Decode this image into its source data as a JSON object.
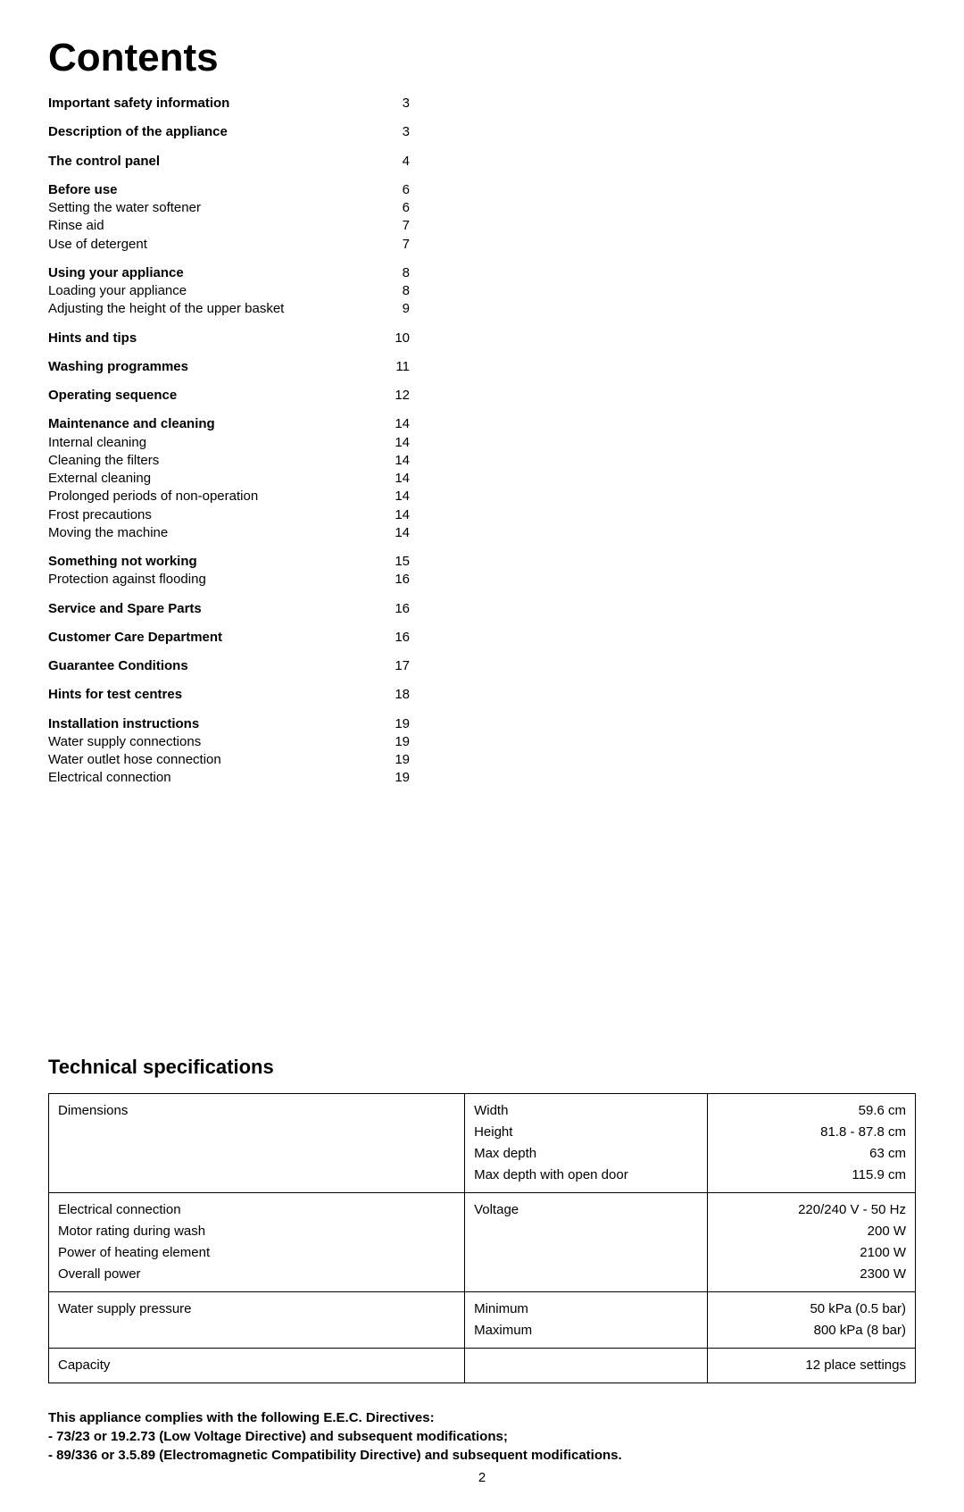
{
  "title": "Contents",
  "toc": [
    {
      "rows": [
        {
          "label": "Important safety information",
          "bold": true,
          "page": "3"
        }
      ]
    },
    {
      "rows": [
        {
          "label": "Description of the appliance",
          "bold": true,
          "page": "3"
        }
      ]
    },
    {
      "rows": [
        {
          "label": "The control panel",
          "bold": true,
          "page": "4"
        }
      ]
    },
    {
      "rows": [
        {
          "label": "Before use",
          "bold": true,
          "page": "6"
        },
        {
          "label": "Setting the water softener",
          "bold": false,
          "page": "6"
        },
        {
          "label": "Rinse aid",
          "bold": false,
          "page": "7"
        },
        {
          "label": "Use of detergent",
          "bold": false,
          "page": "7"
        }
      ]
    },
    {
      "rows": [
        {
          "label": "Using your appliance",
          "bold": true,
          "page": "8"
        },
        {
          "label": "Loading your appliance",
          "bold": false,
          "page": "8"
        },
        {
          "label": "Adjusting the height of the upper basket",
          "bold": false,
          "page": "9"
        }
      ]
    },
    {
      "rows": [
        {
          "label": "Hints and tips",
          "bold": true,
          "page": "10"
        }
      ]
    },
    {
      "rows": [
        {
          "label": "Washing programmes",
          "bold": true,
          "page": "11"
        }
      ]
    },
    {
      "rows": [
        {
          "label": "Operating sequence",
          "bold": true,
          "page": "12"
        }
      ]
    },
    {
      "rows": [
        {
          "label": "Maintenance and cleaning",
          "bold": true,
          "page": "14"
        },
        {
          "label": "Internal cleaning",
          "bold": false,
          "page": "14"
        },
        {
          "label": "Cleaning the filters",
          "bold": false,
          "page": "14"
        },
        {
          "label": "External cleaning",
          "bold": false,
          "page": "14"
        },
        {
          "label": "Prolonged periods of non-operation",
          "bold": false,
          "page": "14"
        },
        {
          "label": "Frost precautions",
          "bold": false,
          "page": "14"
        },
        {
          "label": "Moving the machine",
          "bold": false,
          "page": "14"
        }
      ]
    },
    {
      "rows": [
        {
          "label": "Something not working",
          "bold": true,
          "page": "15"
        },
        {
          "label": "Protection against flooding",
          "bold": false,
          "page": "16"
        }
      ]
    },
    {
      "rows": [
        {
          "label": "Service and Spare Parts",
          "bold": true,
          "page": "16"
        }
      ]
    },
    {
      "rows": [
        {
          "label": "Customer Care Department",
          "bold": true,
          "page": "16"
        }
      ]
    },
    {
      "rows": [
        {
          "label": "Guarantee Conditions",
          "bold": true,
          "page": "17"
        }
      ]
    },
    {
      "rows": [
        {
          "label": "Hints for test centres",
          "bold": true,
          "page": "18"
        }
      ]
    },
    {
      "rows": [
        {
          "label": "Installation instructions",
          "bold": true,
          "page": "19"
        },
        {
          "label": "Water supply connections",
          "bold": false,
          "page": "19"
        },
        {
          "label": "Water outlet hose connection",
          "bold": false,
          "page": "19"
        },
        {
          "label": "Electrical connection",
          "bold": false,
          "page": "19"
        }
      ]
    }
  ],
  "spec_heading": "Technical specifications",
  "specs": [
    {
      "col1": [
        "Dimensions"
      ],
      "col2": [
        "Width",
        "Height",
        "Max depth",
        "Max depth with open door"
      ],
      "col3": [
        "59.6 cm",
        "81.8 - 87.8 cm",
        "63 cm",
        "115.9 cm"
      ]
    },
    {
      "col1": [
        "Electrical connection",
        "Motor rating during wash",
        "Power of heating element",
        "Overall power"
      ],
      "col2": [
        "Voltage"
      ],
      "col3": [
        "220/240 V - 50 Hz",
        "200 W",
        "2100 W",
        "2300 W"
      ]
    },
    {
      "col1": [
        "Water supply pressure"
      ],
      "col2": [
        "Minimum",
        "Maximum"
      ],
      "col3": [
        "50 kPa (0.5 bar)",
        "800 kPa (8 bar)"
      ]
    },
    {
      "col1": [
        "Capacity"
      ],
      "col2": [
        ""
      ],
      "col3": [
        "12 place settings"
      ]
    }
  ],
  "compliance": [
    "This appliance complies with the following E.E.C. Directives:",
    "- 73/23 or 19.2.73 (Low Voltage Directive) and subsequent modifications;",
    "- 89/336 or 3.5.89 (Electromagnetic Compatibility Directive) and subsequent modifications."
  ],
  "page_number": "2"
}
